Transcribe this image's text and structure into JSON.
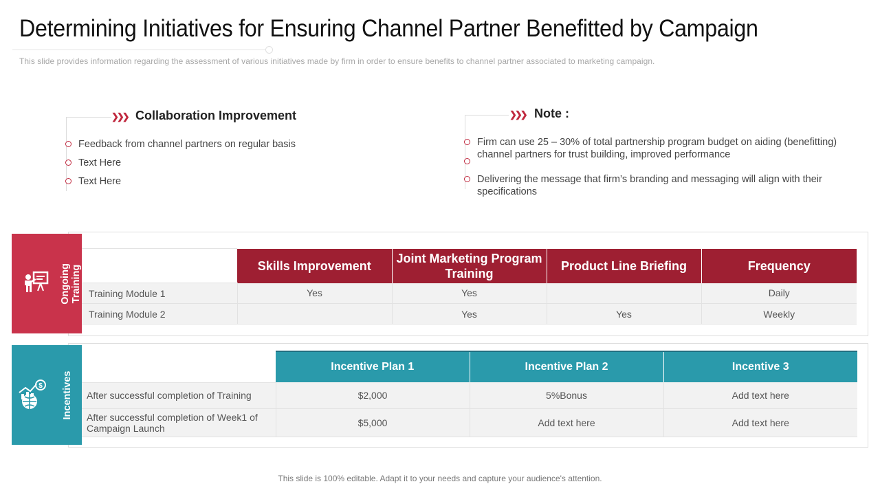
{
  "title": "Determining Initiatives for Ensuring Channel Partner Benefitted by Campaign",
  "subtitle": "This slide provides  information  regarding  the assessment of various  initiatives  made by firm  in order  to ensure  benefits  to channel partner  associated to marketing campaign.",
  "collaboration": {
    "heading": "Collaboration Improvement",
    "items": [
      "Feedback from channel partners on regular basis",
      "Text Here",
      "Text Here"
    ]
  },
  "note": {
    "heading": "Note :",
    "items": [
      "Firm can use 25 – 30% of total partnership program budget on aiding (benefitting) channel partners for trust building, improved performance",
      "Delivering the message that firm’s branding and messaging will align with their specifications"
    ]
  },
  "training": {
    "tab_label_line1": "Ongoing",
    "tab_label_line2": "Training",
    "icon": "presentation-icon",
    "columns": [
      "Skills Improvement",
      "Joint Marketing Program Training",
      "Product Line Briefing",
      "Frequency"
    ],
    "rows": [
      {
        "label": "Training Module 1",
        "cells": [
          "Yes",
          "Yes",
          "",
          "Daily"
        ]
      },
      {
        "label": "Training Module 2",
        "cells": [
          "",
          "Yes",
          "Yes",
          "Weekly"
        ]
      }
    ]
  },
  "incentives": {
    "tab_label": "Incentives",
    "icon": "globe-money-icon",
    "columns": [
      "Incentive Plan 1",
      "Incentive Plan 2",
      "Incentive 3"
    ],
    "rows": [
      {
        "label": "After successful completion of Training",
        "cells": [
          "$2,000",
          "5%Bonus",
          "Add text here"
        ]
      },
      {
        "label": "After successful completion of Week1 of Campaign Launch",
        "cells": [
          "$5,000",
          "Add text here",
          "Add text here"
        ]
      }
    ]
  },
  "colors": {
    "red": "#c0283e",
    "dark_red": "#9e1f32",
    "teal": "#2a9aab"
  },
  "footer": "This slide is 100% editable. Adapt it to your needs and capture your audience's attention."
}
